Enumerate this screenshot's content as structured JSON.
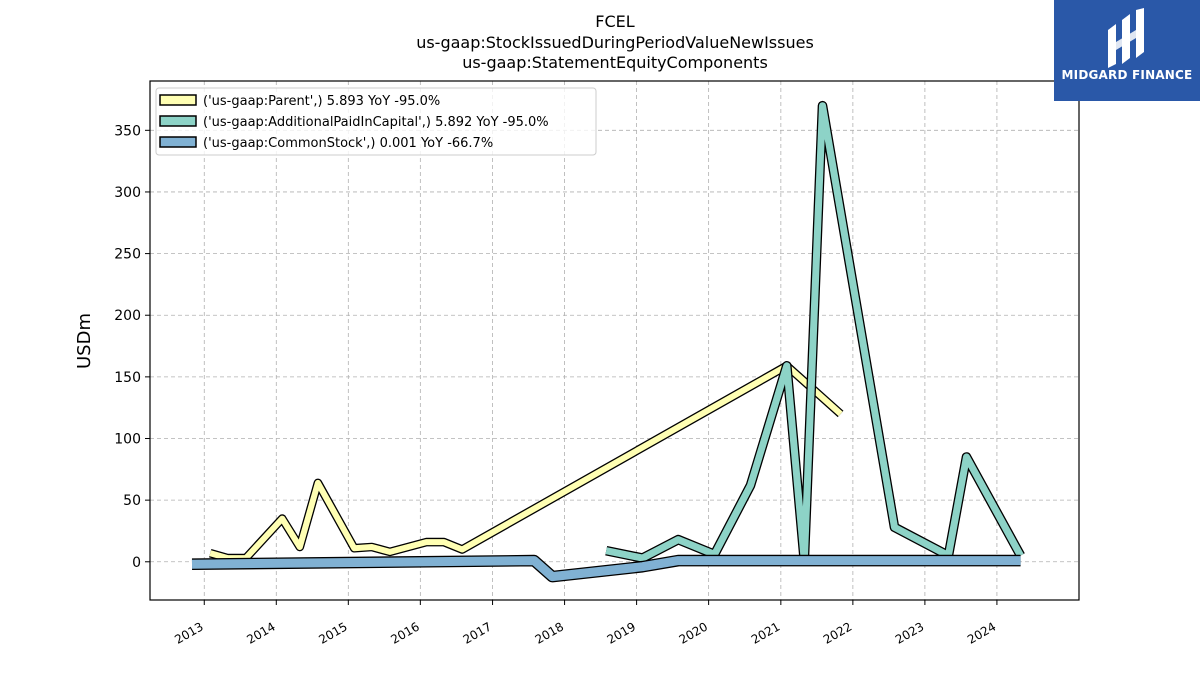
{
  "chart_data": {
    "type": "line",
    "title": "FCEL",
    "subtitle_lines": [
      "us-gaap:StockIssuedDuringPeriodValueNewIssues",
      "us-gaap:StatementEquityComponents"
    ],
    "xlabel": "",
    "ylabel": "USDm",
    "xlim": [
      "2012-04-01",
      "2025-02-20"
    ],
    "ylim": [
      -31,
      390
    ],
    "x_ticks": [
      "2013",
      "2014",
      "2015",
      "2016",
      "2017",
      "2018",
      "2019",
      "2020",
      "2021",
      "2022",
      "2023",
      "2024"
    ],
    "y_ticks": [
      0,
      50,
      100,
      150,
      200,
      250,
      300,
      350
    ],
    "grid": true,
    "legend_position": "top-left",
    "series": [
      {
        "name": "('us-gaap:Parent',) 5.893 YoY -95.0%",
        "color": "#ffffb3",
        "points": [
          [
            "2013-01-31",
            7
          ],
          [
            "2013-04-30",
            3
          ],
          [
            "2013-07-31",
            3
          ],
          [
            "2014-01-31",
            35
          ],
          [
            "2014-04-30",
            12
          ],
          [
            "2014-07-31",
            64
          ],
          [
            "2015-01-31",
            11
          ],
          [
            "2015-04-30",
            12
          ],
          [
            "2015-07-31",
            8
          ],
          [
            "2016-01-31",
            16
          ],
          [
            "2016-04-30",
            16
          ],
          [
            "2016-07-31",
            10
          ],
          [
            "2021-01-31",
            159
          ],
          [
            "2021-10-31",
            120
          ]
        ]
      },
      {
        "name": "('us-gaap:AdditionalPaidInCapital',) 5.892 YoY -95.0%",
        "color": "#8dd3c7",
        "points": [
          [
            "2018-07-31",
            9
          ],
          [
            "2019-01-31",
            3
          ],
          [
            "2019-07-31",
            18
          ],
          [
            "2020-01-31",
            6
          ],
          [
            "2020-07-31",
            62
          ],
          [
            "2021-01-31",
            159
          ],
          [
            "2021-04-30",
            1
          ],
          [
            "2021-07-31",
            370
          ],
          [
            "2022-07-31",
            28
          ],
          [
            "2023-04-30",
            5
          ],
          [
            "2023-07-31",
            85
          ],
          [
            "2024-04-30",
            5
          ]
        ]
      },
      {
        "name": "('us-gaap:CommonStock',) 0.001 YoY -66.7%",
        "color": "#80b1d3",
        "points": [
          [
            "2012-10-31",
            -2
          ],
          [
            "2017-07-31",
            1
          ],
          [
            "2017-10-31",
            -12
          ],
          [
            "2019-01-31",
            -4
          ],
          [
            "2019-07-31",
            1
          ],
          [
            "2024-04-30",
            1
          ]
        ]
      }
    ]
  },
  "logo": {
    "name": "MIDGARD FINANCE"
  }
}
